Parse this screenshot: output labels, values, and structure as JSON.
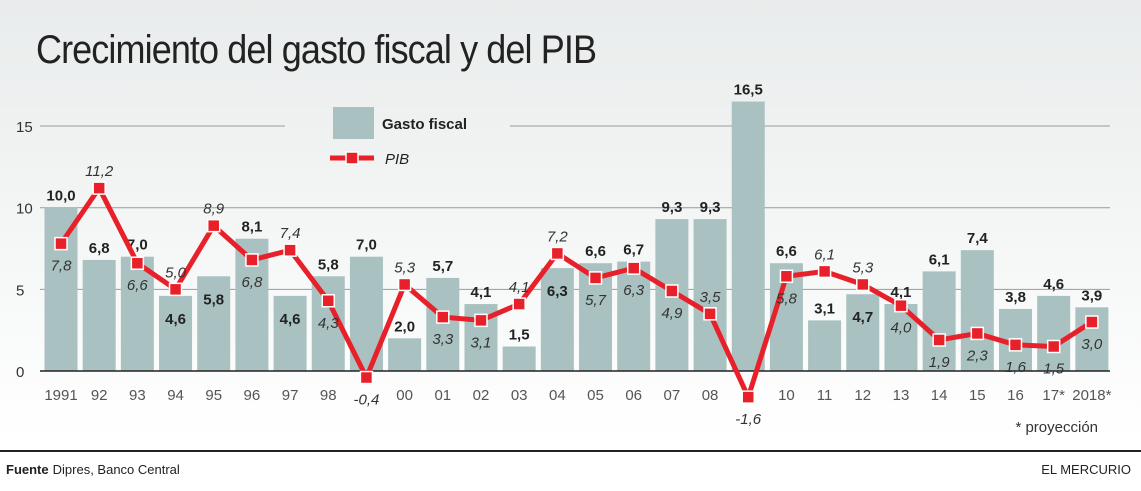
{
  "title": "Crecimiento del gasto fiscal y del PIB",
  "note": "* proyección",
  "footer": {
    "source_label": "Fuente",
    "source": "Dipres, Banco Central",
    "brand": "EL MERCURIO"
  },
  "colors": {
    "bar": "#a9c1c0",
    "line": "#e8202a",
    "grid": "#9a9a9a"
  },
  "chart_data": {
    "type": "bar+line",
    "categories": [
      "1991",
      "92",
      "93",
      "94",
      "95",
      "96",
      "97",
      "98",
      "",
      "00",
      "01",
      "02",
      "03",
      "04",
      "05",
      "06",
      "07",
      "08",
      "",
      "10",
      "11",
      "12",
      "13",
      "14",
      "15",
      "16",
      "17*",
      "2018*"
    ],
    "ylim": [
      0,
      16.5
    ],
    "yticks": [
      0,
      5,
      10,
      15
    ],
    "grid": true,
    "legend": "top-center",
    "series": [
      {
        "name": "Gasto fiscal",
        "type": "bar",
        "values": [
          10.0,
          6.8,
          7.0,
          4.6,
          5.8,
          8.1,
          4.6,
          5.8,
          7.0,
          2.0,
          5.7,
          4.1,
          1.5,
          6.3,
          6.6,
          6.7,
          9.3,
          9.3,
          16.5,
          6.6,
          3.1,
          4.7,
          4.1,
          6.1,
          7.4,
          3.8,
          4.6,
          3.9
        ]
      },
      {
        "name": "PIB",
        "type": "line",
        "values": [
          7.8,
          11.2,
          6.6,
          5.0,
          8.9,
          6.8,
          7.4,
          4.3,
          -0.4,
          5.3,
          3.3,
          3.1,
          4.1,
          7.2,
          5.7,
          6.3,
          4.9,
          3.5,
          -1.6,
          5.8,
          6.1,
          5.3,
          4.0,
          1.9,
          2.3,
          1.6,
          1.5,
          3.0
        ]
      }
    ]
  }
}
